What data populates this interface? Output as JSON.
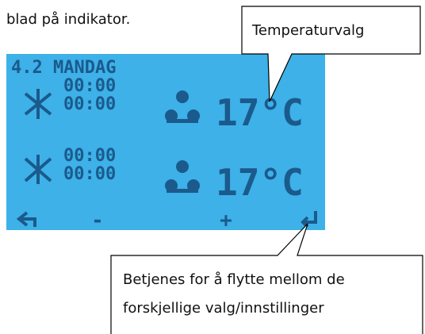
{
  "intro": "blad på indikator.",
  "lcd": {
    "header": "4.2 MANDAG",
    "rows": [
      {
        "times": [
          "00:00",
          "00:00"
        ],
        "temperature": "17°C"
      },
      {
        "times": [
          "00:00",
          "00:00"
        ],
        "temperature": "17°C"
      }
    ],
    "buttons": [
      "-",
      "+"
    ]
  },
  "callouts": {
    "top": "Temperaturvalg",
    "bottom": [
      "Betjenes for å flytte mellom de",
      "forskjellige valg/innstillinger"
    ]
  }
}
